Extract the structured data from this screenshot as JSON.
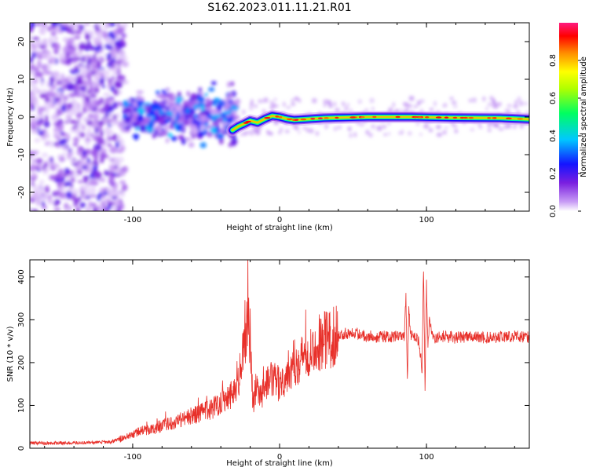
{
  "figure_title": "S162.2023.011.11.21.R01",
  "chart_data": [
    {
      "type": "heatmap",
      "xlabel": "Height of straight line (km)",
      "ylabel": "Frequency (Hz)",
      "xlim": [
        -170,
        170
      ],
      "ylim": [
        -25,
        25
      ],
      "xticks": [
        -100,
        0,
        100
      ],
      "xtick_labels": [
        "-100",
        "0",
        "100"
      ],
      "yticks": [
        -20,
        -10,
        0,
        10,
        20
      ],
      "ytick_labels": [
        "-20",
        "-10",
        "0",
        "10",
        "20"
      ],
      "colorbar": {
        "label": "Normalized spectral amplitude",
        "range": [
          0,
          1
        ],
        "ticks": [
          0.0,
          0.2,
          0.4,
          0.6,
          0.8
        ],
        "tick_labels": [
          "0.0",
          "0.2",
          "0.4",
          "0.6",
          "0.8"
        ],
        "colormap": "rainbow",
        "colors": [
          "#ffffff",
          "#8a2be2",
          "#0000ff",
          "#00e5ff",
          "#00ff00",
          "#ffff00",
          "#ff8c00",
          "#ff0000",
          "#ff1493"
        ]
      },
      "ridge": {
        "x": [
          -32,
          -28,
          -24,
          -20,
          -15,
          -10,
          -5,
          0,
          5,
          10,
          30,
          60,
          90,
          120,
          150,
          170
        ],
        "y": [
          -3.5,
          -2.5,
          -1.8,
          -1.0,
          -1.5,
          -0.5,
          0.3,
          0.0,
          -0.5,
          -0.8,
          -0.3,
          0.0,
          0.0,
          -0.2,
          -0.3,
          -0.6
        ]
      },
      "regions": [
        {
          "x_range": [
            -170,
            -105
          ],
          "y_range": [
            -25,
            25
          ],
          "level": 0.2,
          "type": "noise"
        },
        {
          "x_range": [
            -105,
            -30
          ],
          "y_range": [
            -8,
            10
          ],
          "level": 0.35,
          "type": "scattered"
        }
      ],
      "grid": false
    },
    {
      "type": "line",
      "xlabel": "Height of straight line (km)",
      "ylabel": "SNR (10 * v/v)",
      "xlim": [
        -170,
        170
      ],
      "ylim": [
        0,
        440
      ],
      "xticks": [
        -100,
        0,
        100
      ],
      "xtick_labels": [
        "-100",
        "0",
        "100"
      ],
      "yticks": [
        0,
        100,
        200,
        300,
        400
      ],
      "ytick_labels": [
        "0",
        "100",
        "200",
        "300",
        "400"
      ],
      "color": "#e8302a",
      "series": [
        {
          "x": [
            -170,
            -150,
            -130,
            -115,
            -105,
            -95,
            -85,
            -75,
            -65,
            -55,
            -45,
            -38,
            -32,
            -28,
            -24,
            -22,
            -20,
            -19,
            -18,
            -16,
            -14,
            -10,
            -5,
            0,
            5,
            10,
            15,
            20,
            25,
            30,
            35,
            40,
            45,
            50,
            55,
            60,
            65,
            70,
            75,
            80,
            85,
            86,
            87,
            88,
            89,
            90,
            92,
            95,
            97,
            98,
            99,
            100,
            101,
            102,
            104,
            107,
            110,
            120,
            130,
            140,
            150,
            160,
            170
          ],
          "y": [
            12,
            12,
            13,
            15,
            25,
            40,
            45,
            58,
            70,
            80,
            95,
            115,
            130,
            160,
            230,
            300,
            270,
            160,
            110,
            140,
            115,
            145,
            160,
            150,
            175,
            200,
            210,
            230,
            240,
            255,
            258,
            262,
            268,
            272,
            265,
            262,
            260,
            262,
            258,
            262,
            258,
            360,
            150,
            340,
            260,
            265,
            262,
            250,
            180,
            420,
            140,
            380,
            230,
            300,
            260,
            255,
            262,
            258,
            262,
            258,
            260,
            262,
            258
          ]
        }
      ],
      "grid": false
    }
  ]
}
